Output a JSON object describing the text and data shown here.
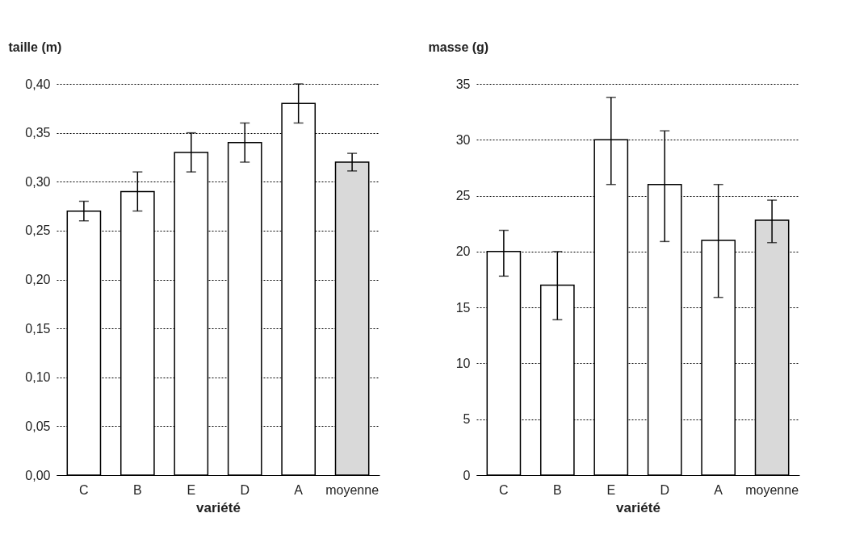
{
  "chart_data": [
    {
      "type": "bar",
      "ylabel": "taille (m)",
      "xlabel": "variété",
      "categories": [
        "C",
        "B",
        "E",
        "D",
        "A",
        "moyenne"
      ],
      "values": [
        0.27,
        0.29,
        0.33,
        0.34,
        0.38,
        0.32
      ],
      "colors": [
        "#ffffff",
        "#ffffff",
        "#ffffff",
        "#ffffff",
        "#ffffff",
        "#d9d9d9"
      ],
      "errors": [
        [
          0.26,
          0.28
        ],
        [
          0.27,
          0.31
        ],
        [
          0.31,
          0.35
        ],
        [
          0.32,
          0.36
        ],
        [
          0.36,
          0.4
        ],
        [
          0.311,
          0.329
        ]
      ],
      "ylim": [
        0,
        0.4
      ],
      "yticks": [
        {
          "value": 0,
          "label": "0,00"
        },
        {
          "value": 0.05,
          "label": "0,05"
        },
        {
          "value": 0.1,
          "label": "0,10"
        },
        {
          "value": 0.15,
          "label": "0,15"
        },
        {
          "value": 0.2,
          "label": "0,20"
        },
        {
          "value": 0.25,
          "label": "0,25"
        },
        {
          "value": 0.3,
          "label": "0,30"
        },
        {
          "value": 0.35,
          "label": "0,35"
        },
        {
          "value": 0.4,
          "label": "0,40"
        }
      ],
      "grid": "y"
    },
    {
      "type": "bar",
      "ylabel": "masse (g)",
      "xlabel": "variété",
      "categories": [
        "C",
        "B",
        "E",
        "D",
        "A",
        "moyenne"
      ],
      "values": [
        20,
        17,
        30,
        26,
        21,
        22.8
      ],
      "colors": [
        "#ffffff",
        "#ffffff",
        "#ffffff",
        "#ffffff",
        "#ffffff",
        "#d9d9d9"
      ],
      "errors": [
        [
          17.8,
          21.9
        ],
        [
          13.9,
          20
        ],
        [
          26,
          33.8
        ],
        [
          20.9,
          30.8
        ],
        [
          15.9,
          26
        ],
        [
          20.8,
          24.6
        ]
      ],
      "ylim": [
        0,
        35
      ],
      "yticks": [
        0,
        5,
        10,
        15,
        20,
        25,
        30,
        35
      ],
      "grid": "y"
    }
  ]
}
